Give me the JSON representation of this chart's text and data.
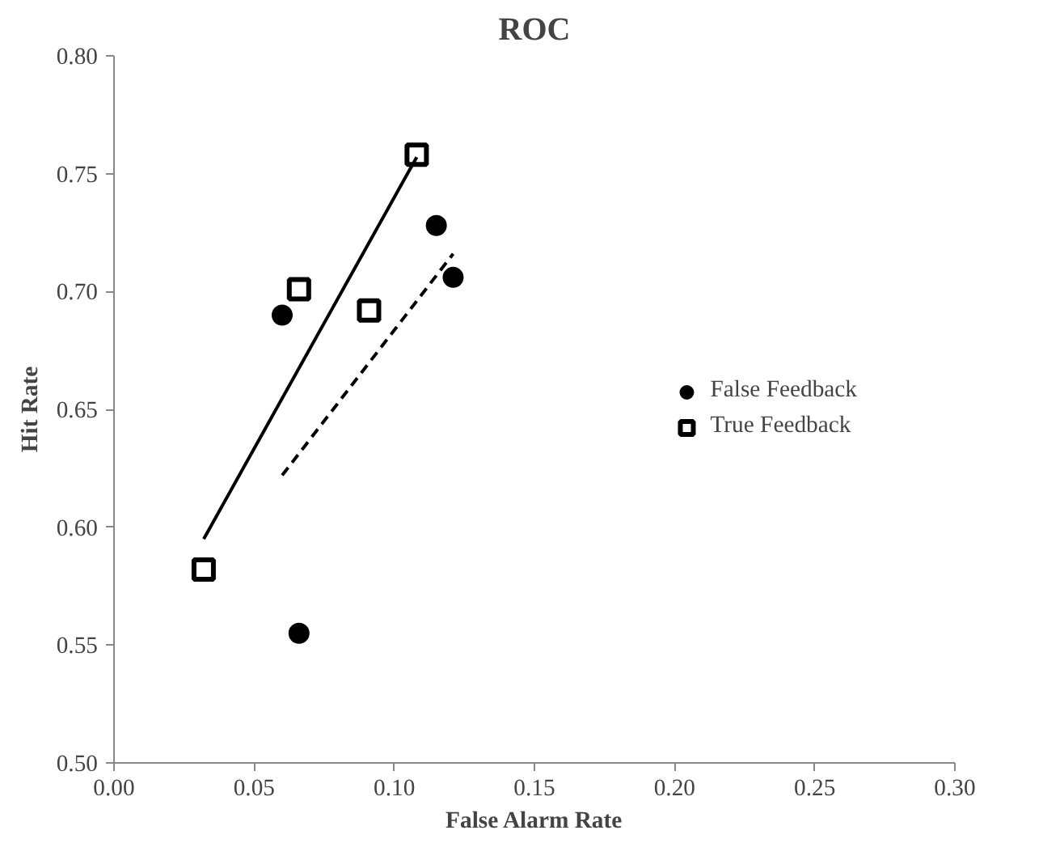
{
  "chart_data": {
    "type": "scatter",
    "title": "ROC",
    "xlabel": "False Alarm Rate",
    "ylabel": "Hit Rate",
    "xlim": [
      0,
      0.3
    ],
    "xticks": [
      {
        "value": 0,
        "label": "0.00"
      },
      {
        "value": 0.05,
        "label": "0.05"
      },
      {
        "value": 0.1,
        "label": "0.10"
      },
      {
        "value": 0.15,
        "label": "0.15"
      },
      {
        "value": 0.2,
        "label": "0.20"
      },
      {
        "value": 0.25,
        "label": "0.25"
      },
      {
        "value": 0.3,
        "label": "0.30"
      }
    ],
    "ylim": [
      0.5,
      0.8
    ],
    "yticks": [
      {
        "value": 0.5,
        "label": "0.50"
      },
      {
        "value": 0.55,
        "label": "0.55"
      },
      {
        "value": 0.6,
        "label": "0.60"
      },
      {
        "value": 0.65,
        "label": "0.65"
      },
      {
        "value": 0.7,
        "label": "0.70"
      },
      {
        "value": 0.75,
        "label": "0.75"
      },
      {
        "value": 0.8,
        "label": "0.80"
      }
    ],
    "grid": false,
    "legend": "right",
    "series": [
      {
        "name": "False Feedback",
        "marker": "circle",
        "color": "#000000",
        "x": [
          0.06,
          0.066,
          0.115,
          0.121
        ],
        "values": [
          0.69,
          0.555,
          0.728,
          0.706
        ]
      },
      {
        "name": "True Feedback",
        "marker": "square",
        "color": "#000000",
        "x": [
          0.032,
          0.066,
          0.091,
          0.108
        ],
        "values": [
          0.582,
          0.701,
          0.692,
          0.758
        ]
      },
      {
        "type": "line",
        "line_style": "solid",
        "color": "#000000",
        "x": [
          0.032,
          0.108
        ],
        "values": [
          0.595,
          0.757
        ]
      },
      {
        "type": "line",
        "line_style": "dashed",
        "color": "#000000",
        "x": [
          0.06,
          0.121
        ],
        "values": [
          0.622,
          0.716
        ]
      }
    ]
  }
}
